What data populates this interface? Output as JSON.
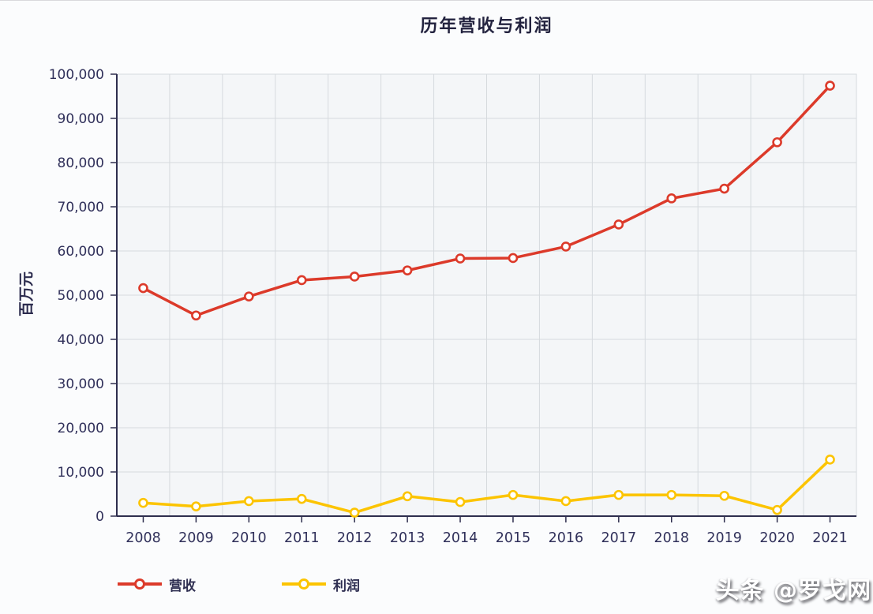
{
  "title": "历年营收与利润",
  "watermark": "头条 @罗戈网",
  "chart_data": {
    "type": "line",
    "title": "历年营收与利润",
    "xlabel": "",
    "ylabel": "百万元",
    "categories": [
      "2008",
      "2009",
      "2010",
      "2011",
      "2012",
      "2013",
      "2014",
      "2015",
      "2016",
      "2017",
      "2018",
      "2019",
      "2020",
      "2021"
    ],
    "series": [
      {
        "name": "营收",
        "color": "#dc3a2a",
        "values": [
          51600,
          45400,
          49700,
          53400,
          54200,
          55600,
          58300,
          58400,
          61000,
          66000,
          71900,
          74100,
          84600,
          97400
        ]
      },
      {
        "name": "利润",
        "color": "#fcc400",
        "values": [
          3000,
          2200,
          3400,
          3900,
          800,
          4500,
          3200,
          4800,
          3400,
          4800,
          4800,
          4600,
          1400,
          12800
        ]
      }
    ],
    "ylim": [
      0,
      100000
    ],
    "ytick_step": 10000,
    "yticks": [
      "0",
      "10,000",
      "20,000",
      "30,000",
      "40,000",
      "50,000",
      "60,000",
      "70,000",
      "80,000",
      "90,000",
      "100,000"
    ],
    "grid": true,
    "marker": "ring",
    "legend_position": "bottom-left",
    "colors": {
      "plot_background": "#f4f6f8",
      "grid_line": "#d6dade",
      "axis_line": "#2e2e4e",
      "tick_label": "#30305a",
      "title_text": "#23233f"
    }
  }
}
